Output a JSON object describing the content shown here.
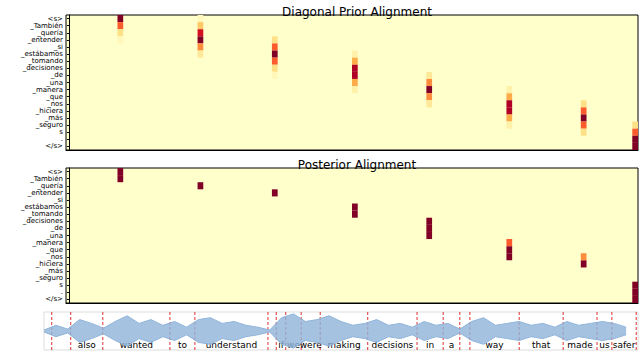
{
  "chart_data": [
    {
      "type": "heatmap",
      "title": "Diagonal Prior Alignment",
      "categories": [
        "<s>",
        "_También",
        "_quería",
        "_entender",
        "_si",
        "_estábamos",
        "_tomando",
        "_decisiones",
        "_de",
        "_una",
        "_manera",
        "_que",
        "_nos",
        "_hiciera",
        "_más",
        "_seguro",
        "s",
        ".",
        "</s>"
      ],
      "xlim": [
        -0.5,
        99.5
      ],
      "tick_labels": "y",
      "color_range": [
        0,
        1
      ],
      "cells": [
        [
          9,
          0,
          1.0
        ],
        [
          9,
          1,
          0.6
        ],
        [
          9,
          2,
          0.2
        ],
        [
          9,
          3,
          0.05
        ],
        [
          23,
          0,
          0.05
        ],
        [
          23,
          1,
          0.3
        ],
        [
          23,
          2,
          0.8
        ],
        [
          23,
          3,
          1.0
        ],
        [
          23,
          4,
          0.5
        ],
        [
          23,
          5,
          0.15
        ],
        [
          36,
          3,
          0.2
        ],
        [
          36,
          4,
          0.6
        ],
        [
          36,
          5,
          1.0
        ],
        [
          36,
          6,
          0.6
        ],
        [
          36,
          7,
          0.2
        ],
        [
          36,
          8,
          0.05
        ],
        [
          50,
          5,
          0.1
        ],
        [
          50,
          6,
          0.4
        ],
        [
          50,
          7,
          0.9
        ],
        [
          50,
          8,
          0.9
        ],
        [
          50,
          9,
          0.4
        ],
        [
          50,
          10,
          0.1
        ],
        [
          63,
          8,
          0.15
        ],
        [
          63,
          9,
          0.5
        ],
        [
          63,
          10,
          1.0
        ],
        [
          63,
          11,
          0.5
        ],
        [
          63,
          12,
          0.15
        ],
        [
          77,
          10,
          0.1
        ],
        [
          77,
          11,
          0.4
        ],
        [
          77,
          12,
          0.9
        ],
        [
          77,
          13,
          0.9
        ],
        [
          77,
          14,
          0.4
        ],
        [
          77,
          15,
          0.1
        ],
        [
          90,
          12,
          0.2
        ],
        [
          90,
          13,
          0.6
        ],
        [
          90,
          14,
          1.0
        ],
        [
          90,
          15,
          0.6
        ],
        [
          90,
          16,
          0.2
        ],
        [
          99,
          15,
          0.2
        ],
        [
          99,
          16,
          0.6
        ],
        [
          99,
          17,
          1.0
        ],
        [
          99,
          18,
          1.0
        ]
      ]
    },
    {
      "type": "heatmap",
      "title": "Posterior Alignment",
      "categories": [
        "<s>",
        "_También",
        "_quería",
        "_entender",
        "_si",
        "_estábamos",
        "_tomando",
        "_decisiones",
        "_de",
        "_una",
        "_manera",
        "_que",
        "_nos",
        "_hiciera",
        "_más",
        "_seguro",
        "s",
        ".",
        "</s>"
      ],
      "xlim": [
        -0.5,
        99.5
      ],
      "tick_labels": "y",
      "color_range": [
        0,
        1
      ],
      "cells": [
        [
          9,
          0,
          1.0
        ],
        [
          9,
          1,
          1.0
        ],
        [
          23,
          2,
          1.0
        ],
        [
          36,
          3,
          1.0
        ],
        [
          50,
          5,
          1.0
        ],
        [
          50,
          6,
          1.0
        ],
        [
          63,
          7,
          1.0
        ],
        [
          63,
          8,
          1.0
        ],
        [
          63,
          9,
          1.0
        ],
        [
          77,
          10,
          0.6
        ],
        [
          77,
          11,
          1.0
        ],
        [
          77,
          12,
          1.0
        ],
        [
          90,
          12,
          0.5
        ],
        [
          90,
          13,
          1.0
        ],
        [
          99,
          16,
          1.0
        ],
        [
          99,
          17,
          1.0
        ],
        [
          99,
          18,
          1.0
        ]
      ]
    },
    {
      "type": "waveform",
      "xlim": [
        0,
        100
      ],
      "ylim": [
        -1,
        1
      ],
      "tick_labels": false,
      "color": "#8fb4da",
      "x": [
        0,
        2,
        4,
        6,
        8,
        10,
        12,
        14,
        16,
        18,
        20,
        22,
        24,
        26,
        28,
        30,
        32,
        34,
        36,
        38,
        40,
        42,
        44,
        46,
        48,
        50,
        52,
        54,
        56,
        58,
        60,
        62,
        64,
        66,
        68,
        70,
        72,
        74,
        76,
        78,
        80,
        82,
        84,
        86,
        88,
        90,
        92,
        94,
        96,
        98
      ],
      "upper": [
        0.05,
        0.3,
        0.1,
        0.6,
        0.4,
        0.15,
        0.5,
        0.8,
        0.4,
        0.6,
        0.3,
        0.5,
        0.2,
        0.6,
        0.7,
        0.4,
        0.5,
        0.3,
        0.2,
        0.05,
        0.7,
        0.9,
        0.5,
        0.6,
        0.8,
        0.5,
        0.3,
        0.4,
        0.6,
        0.3,
        0.4,
        0.2,
        0.5,
        0.3,
        0.4,
        0.1,
        0.5,
        0.7,
        0.3,
        0.4,
        0.5,
        0.3,
        0.4,
        0.2,
        0.5,
        0.3,
        0.4,
        0.5,
        0.4,
        0.2
      ],
      "lower": [
        -0.05,
        -0.3,
        -0.1,
        -0.6,
        -0.4,
        -0.15,
        -0.5,
        -0.8,
        -0.4,
        -0.6,
        -0.3,
        -0.5,
        -0.2,
        -0.6,
        -0.7,
        -0.4,
        -0.5,
        -0.3,
        -0.2,
        -0.05,
        -0.7,
        -0.9,
        -0.5,
        -0.6,
        -0.8,
        -0.5,
        -0.3,
        -0.4,
        -0.6,
        -0.3,
        -0.4,
        -0.2,
        -0.5,
        -0.3,
        -0.4,
        -0.1,
        -0.5,
        -0.7,
        -0.3,
        -0.4,
        -0.5,
        -0.3,
        -0.4,
        -0.2,
        -0.5,
        -0.3,
        -0.4,
        -0.5,
        -0.4,
        -0.2
      ],
      "boundaries": [
        1.3,
        4.5,
        9.9,
        21.2,
        25.4,
        37.7,
        39.1,
        40.7,
        43.3,
        46.5,
        54.5,
        62.8,
        67.2,
        70.0,
        71.7,
        80.0,
        87.4,
        93.1,
        95.6,
        99.7
      ],
      "words": [
        {
          "text": "also",
          "start": 4.5,
          "end": 9.9
        },
        {
          "text": "wanted",
          "start": 9.9,
          "end": 21.2
        },
        {
          "text": "to",
          "start": 21.2,
          "end": 25.4
        },
        {
          "text": "understand",
          "start": 25.4,
          "end": 37.7
        },
        {
          "text": "if",
          "start": 39.1,
          "end": 40.7
        },
        {
          "text": "we",
          "start": 40.7,
          "end": 43.3
        },
        {
          "text": "were",
          "start": 43.3,
          "end": 46.5
        },
        {
          "text": "making",
          "start": 46.5,
          "end": 54.5
        },
        {
          "text": "decisions",
          "start": 54.5,
          "end": 62.8
        },
        {
          "text": "in",
          "start": 62.8,
          "end": 67.2
        },
        {
          "text": "a",
          "start": 67.2,
          "end": 70.0
        },
        {
          "text": "way",
          "start": 71.7,
          "end": 80.0
        },
        {
          "text": "that",
          "start": 80.0,
          "end": 87.4
        },
        {
          "text": "made",
          "start": 87.4,
          "end": 93.1
        },
        {
          "text": "us",
          "start": 93.1,
          "end": 95.6
        },
        {
          "text": "safer",
          "start": 95.6,
          "end": 99.7
        }
      ]
    }
  ]
}
